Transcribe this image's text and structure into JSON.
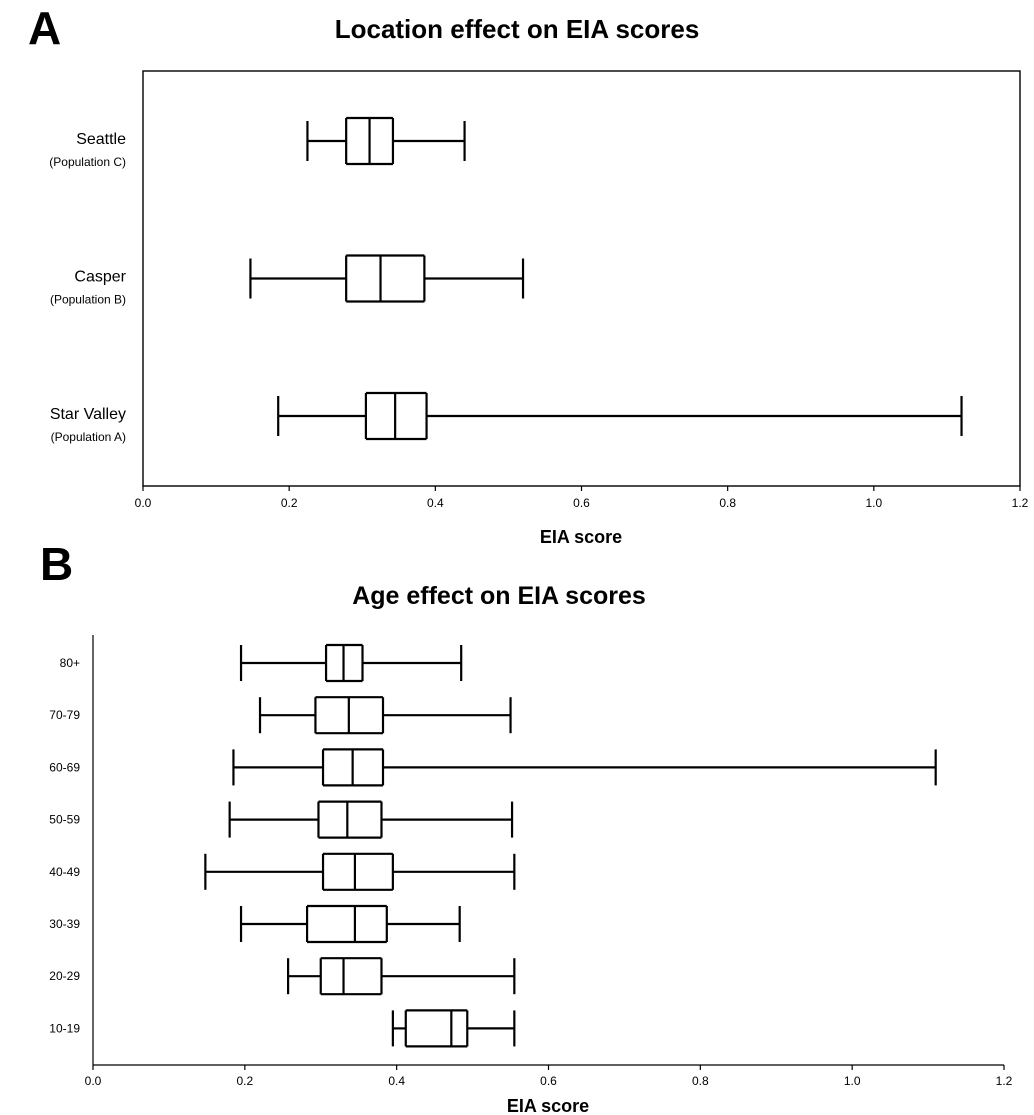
{
  "chart_data": [
    {
      "panel": "A",
      "type": "box",
      "title": "Location effect on EIA scores",
      "xlabel": "EIA score",
      "xlim": [
        0.0,
        1.2
      ],
      "xticks": [
        "0.0",
        "0.2",
        "0.4",
        "0.6",
        "0.8",
        "1.0",
        "1.2"
      ],
      "frame": "full",
      "categories": [
        {
          "name": "Seattle",
          "sub": "(Population C)",
          "min": 0.225,
          "q1": 0.278,
          "median": 0.31,
          "q3": 0.342,
          "max": 0.44
        },
        {
          "name": "Casper",
          "sub": "(Population B)",
          "min": 0.147,
          "q1": 0.278,
          "median": 0.325,
          "q3": 0.385,
          "max": 0.52
        },
        {
          "name": "Star Valley",
          "sub": "(Population A)",
          "min": 0.185,
          "q1": 0.305,
          "median": 0.345,
          "q3": 0.388,
          "max": 1.12
        }
      ]
    },
    {
      "panel": "B",
      "type": "box",
      "title": "Age effect on EIA scores",
      "xlabel": "EIA score",
      "xlim": [
        0.0,
        1.2
      ],
      "xticks": [
        "0.0",
        "0.2",
        "0.4",
        "0.6",
        "0.8",
        "1.0",
        "1.2"
      ],
      "frame": "left-bottom",
      "categories": [
        {
          "name": "80+",
          "min": 0.195,
          "q1": 0.307,
          "median": 0.33,
          "q3": 0.355,
          "max": 0.485
        },
        {
          "name": "70-79",
          "min": 0.22,
          "q1": 0.293,
          "median": 0.337,
          "q3": 0.382,
          "max": 0.55
        },
        {
          "name": "60-69",
          "min": 0.185,
          "q1": 0.303,
          "median": 0.342,
          "q3": 0.382,
          "max": 1.11
        },
        {
          "name": "50-59",
          "min": 0.18,
          "q1": 0.297,
          "median": 0.335,
          "q3": 0.38,
          "max": 0.552
        },
        {
          "name": "40-49",
          "min": 0.148,
          "q1": 0.303,
          "median": 0.345,
          "q3": 0.395,
          "max": 0.555
        },
        {
          "name": "30-39",
          "min": 0.195,
          "q1": 0.282,
          "median": 0.345,
          "q3": 0.387,
          "max": 0.483
        },
        {
          "name": "20-29",
          "min": 0.257,
          "q1": 0.3,
          "median": 0.33,
          "q3": 0.38,
          "max": 0.555
        },
        {
          "name": "10-19",
          "min": 0.395,
          "q1": 0.412,
          "median": 0.472,
          "q3": 0.493,
          "max": 0.555
        }
      ]
    }
  ]
}
